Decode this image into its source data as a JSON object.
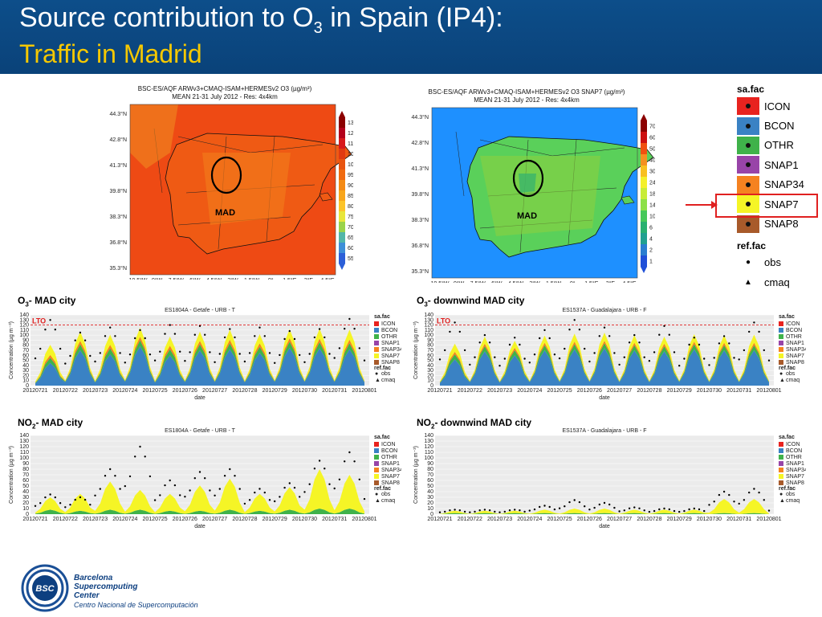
{
  "header": {
    "title_prefix": "Source contribution to O",
    "title_sub": "3",
    "title_suffix": " in Spain (IP4):",
    "subtitle": "Traffic in Madrid"
  },
  "maps": {
    "left": {
      "title1": "BSC-ES/AQF ARWv3+CMAQ-ISAM+HERMESv2 O3 (µg/m³)",
      "title2": "MEAN 21-31 July 2012 - Res: 4x4km",
      "colorbar_ticks": [
        "130",
        "120",
        "110",
        "105",
        "100",
        "95",
        "90",
        "85",
        "80",
        "75",
        "70",
        "65",
        "60",
        "55"
      ],
      "colorbar_colors": [
        "#8b0000",
        "#b3001b",
        "#d7191c",
        "#e03a12",
        "#e85410",
        "#f06a10",
        "#f48a14",
        "#f8a61c",
        "#fcc42a",
        "#e8e63a",
        "#9ad34a",
        "#52b6a8",
        "#3d8ed8",
        "#2c5fd8"
      ],
      "label": "MAD",
      "dominant_color": "#ef5a14"
    },
    "right": {
      "title1": "BSC-ES/AQF ARWv3+CMAQ-ISAM+HERMESv2 O3 SNAP7 (µg/m³)",
      "title2": "MEAN 21-31 July 2012 - Res: 4x4km",
      "colorbar_ticks": [
        "70",
        "60",
        "50",
        "40",
        "30",
        "24",
        "18",
        "14",
        "10",
        "6",
        "4",
        "2",
        "1"
      ],
      "colorbar_colors": [
        "#8b0000",
        "#cc1010",
        "#f05010",
        "#f49020",
        "#f8c020",
        "#f4f02a",
        "#c8ec38",
        "#8ce048",
        "#46c85a",
        "#28b070",
        "#20a090",
        "#2a7ed0",
        "#2050d8"
      ],
      "label": "MAD",
      "dominant_color": "#5ad05a"
    },
    "lat_ticks": [
      "44.3°N",
      "42.8°N",
      "41.3°N",
      "39.8°N",
      "38.3°N",
      "36.8°N",
      "35.3°N"
    ],
    "lon_ticks": [
      "10.5°W",
      "9°W",
      "7.5°W",
      "6°W",
      "4.5°W",
      "3°W",
      "1.5°W",
      "0°",
      "1.5°E",
      "3°E",
      "4.5°E"
    ]
  },
  "legend": {
    "sa_title": "sa.fac",
    "items": [
      {
        "label": "ICON",
        "color": "#e8231f"
      },
      {
        "label": "BCON",
        "color": "#3a82c4"
      },
      {
        "label": "OTHR",
        "color": "#3fb24a"
      },
      {
        "label": "SNAP1",
        "color": "#9844a8"
      },
      {
        "label": "SNAP34",
        "color": "#f58220"
      },
      {
        "label": "SNAP7",
        "color": "#f5f526"
      },
      {
        "label": "SNAP8",
        "color": "#a85a2a"
      }
    ],
    "ref_title": "ref.fac",
    "ref_items": [
      {
        "label": "obs",
        "symbol": "●"
      },
      {
        "label": "cmaq",
        "symbol": "▲"
      }
    ]
  },
  "sections": {
    "o3_mad": {
      "prefix": "O",
      "sub": "3",
      "suffix": "- MAD city"
    },
    "o3_down": {
      "prefix": "O",
      "sub": "3",
      "suffix": "- downwind MAD city"
    },
    "no2_mad": {
      "prefix": "NO",
      "sub": "2",
      "suffix": "- MAD city"
    },
    "no2_down": {
      "prefix": "NO",
      "sub": "2",
      "suffix": "- downwind MAD city"
    }
  },
  "chart_data": [
    {
      "type": "area",
      "title": "ES1804A - Getafe - URB - T",
      "xlabel": "date",
      "ylabel": "Concentration (µg m⁻³)",
      "ylim": [
        0,
        140
      ],
      "yticks": [
        0,
        10,
        20,
        30,
        40,
        50,
        60,
        70,
        80,
        90,
        100,
        110,
        120,
        130,
        140
      ],
      "categories": [
        "20120721",
        "20120722",
        "20120723",
        "20120724",
        "20120725",
        "20120726",
        "20120727",
        "20120728",
        "20120729",
        "20120730",
        "20120731",
        "20120801"
      ],
      "threshold": {
        "label": "LTO",
        "value": 120
      },
      "series": [
        {
          "name": "BCON",
          "values": [
            45,
            70,
            62,
            78,
            60,
            70,
            72,
            65,
            75,
            74,
            72,
            65
          ]
        },
        {
          "name": "OTHR",
          "values": [
            10,
            12,
            12,
            12,
            12,
            12,
            12,
            12,
            12,
            12,
            12,
            12
          ]
        },
        {
          "name": "SNAP34",
          "values": [
            6,
            7,
            7,
            7,
            7,
            7,
            7,
            7,
            7,
            7,
            7,
            7
          ]
        },
        {
          "name": "SNAP7",
          "values": [
            20,
            18,
            20,
            18,
            18,
            18,
            20,
            18,
            18,
            20,
            20,
            18
          ]
        },
        {
          "name": "obs",
          "values": [
            130,
            105,
            115,
            110,
            120,
            118,
            112,
            115,
            108,
            112,
            132,
            120
          ]
        }
      ]
    },
    {
      "type": "area",
      "title": "ES1537A - Guadalajara - URB - F",
      "xlabel": "date",
      "ylabel": "Concentration (µg m⁻³)",
      "ylim": [
        0,
        140
      ],
      "yticks": [
        0,
        10,
        20,
        30,
        40,
        50,
        60,
        70,
        80,
        90,
        100,
        110,
        120,
        130,
        140
      ],
      "categories": [
        "20120721",
        "20120722",
        "20120723",
        "20120724",
        "20120725",
        "20120726",
        "20120727",
        "20120728",
        "20120729",
        "20120730",
        "20120731",
        "20120801"
      ],
      "threshold": {
        "label": "LTO",
        "value": 120
      },
      "series": [
        {
          "name": "BCON",
          "values": [
            52,
            68,
            60,
            70,
            72,
            74,
            70,
            68,
            72,
            70,
            70,
            66
          ]
        },
        {
          "name": "OTHR",
          "values": [
            10,
            10,
            10,
            10,
            10,
            10,
            10,
            10,
            10,
            10,
            10,
            10
          ]
        },
        {
          "name": "SNAP34",
          "values": [
            5,
            5,
            5,
            5,
            5,
            5,
            5,
            5,
            5,
            5,
            5,
            5
          ]
        },
        {
          "name": "SNAP7",
          "values": [
            16,
            14,
            14,
            14,
            16,
            16,
            15,
            14,
            15,
            15,
            16,
            14
          ]
        },
        {
          "name": "obs",
          "values": [
            125,
            100,
            95,
            110,
            130,
            115,
            100,
            118,
            95,
            98,
            125,
            120
          ]
        }
      ]
    },
    {
      "type": "area",
      "title": "ES1804A - Getafe - URB - T",
      "xlabel": "date",
      "ylabel": "Concentration (µg m⁻³)",
      "ylim": [
        0,
        140
      ],
      "yticks": [
        0,
        10,
        20,
        30,
        40,
        50,
        60,
        70,
        80,
        90,
        100,
        110,
        120,
        130,
        140
      ],
      "categories": [
        "20120721",
        "20120722",
        "20120723",
        "20120724",
        "20120725",
        "20120726",
        "20120727",
        "20120728",
        "20120729",
        "20120730",
        "20120731",
        "20120801"
      ],
      "series": [
        {
          "name": "OTHR",
          "values": [
            8,
            6,
            8,
            8,
            6,
            6,
            8,
            6,
            8,
            10,
            10,
            8
          ]
        },
        {
          "name": "SNAP7",
          "values": [
            22,
            30,
            50,
            35,
            30,
            45,
            55,
            30,
            40,
            70,
            60,
            45
          ]
        },
        {
          "name": "obs",
          "values": [
            35,
            30,
            80,
            120,
            60,
            75,
            80,
            45,
            55,
            95,
            110,
            65
          ]
        }
      ]
    },
    {
      "type": "area",
      "title": "ES1537A - Guadalajara - URB - F",
      "xlabel": "date",
      "ylabel": "Concentration (µg m⁻³)",
      "ylim": [
        0,
        140
      ],
      "yticks": [
        0,
        10,
        20,
        30,
        40,
        50,
        60,
        70,
        80,
        90,
        100,
        110,
        120,
        130,
        140
      ],
      "categories": [
        "20120721",
        "20120722",
        "20120723",
        "20120724",
        "20120725",
        "20120726",
        "20120727",
        "20120728",
        "20120729",
        "20120730",
        "20120731",
        "20120801"
      ],
      "series": [
        {
          "name": "OTHR",
          "values": [
            2,
            2,
            2,
            2,
            2,
            2,
            2,
            2,
            2,
            2,
            2,
            2
          ]
        },
        {
          "name": "SNAP7",
          "values": [
            4,
            4,
            4,
            6,
            8,
            8,
            6,
            6,
            6,
            25,
            25,
            10
          ]
        },
        {
          "name": "obs",
          "values": [
            8,
            8,
            8,
            15,
            25,
            20,
            12,
            10,
            10,
            40,
            45,
            15
          ]
        }
      ]
    }
  ]
}
